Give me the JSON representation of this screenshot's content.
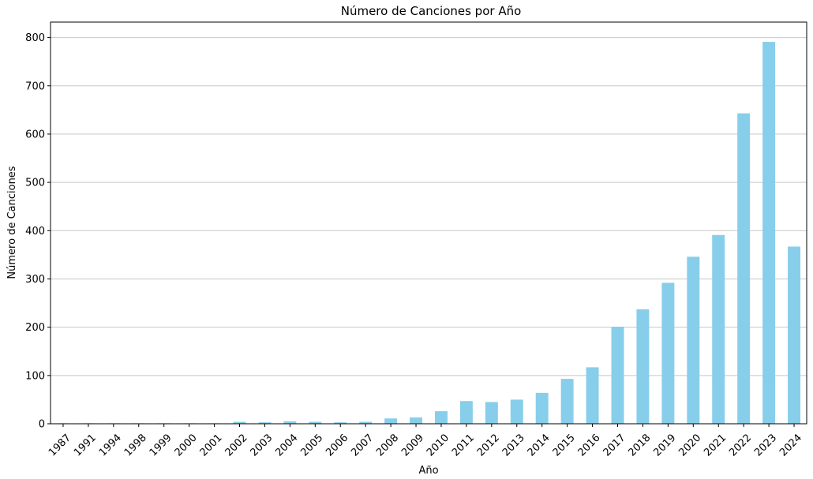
{
  "chart_data": {
    "type": "bar",
    "title": "Número de Canciones por Año",
    "xlabel": "Año",
    "ylabel": "Número de Canciones",
    "categories": [
      "1987",
      "1991",
      "1994",
      "1998",
      "1999",
      "2000",
      "2001",
      "2002",
      "2003",
      "2004",
      "2005",
      "2006",
      "2007",
      "2008",
      "2009",
      "2010",
      "2011",
      "2012",
      "2013",
      "2014",
      "2015",
      "2016",
      "2017",
      "2018",
      "2019",
      "2020",
      "2021",
      "2022",
      "2023",
      "2024"
    ],
    "values": [
      1,
      1,
      1,
      1,
      1,
      1,
      1,
      4,
      3,
      5,
      4,
      3,
      4,
      11,
      13,
      26,
      47,
      45,
      50,
      64,
      93,
      117,
      201,
      237,
      292,
      346,
      391,
      643,
      791,
      367
    ],
    "yticks": [
      0,
      100,
      200,
      300,
      400,
      500,
      600,
      700,
      800
    ],
    "ylim": [
      0,
      832
    ],
    "grid": "y",
    "color": "#87CEEB"
  }
}
